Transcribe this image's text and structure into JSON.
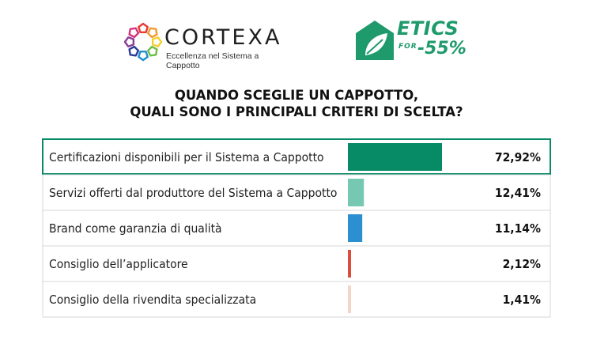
{
  "header": {
    "cortexa_name": "CORTEXA",
    "cortexa_tagline": "Eccellenza nel Sistema a Cappotto",
    "etics_word": "ETICS",
    "etics_for": "FOR",
    "etics_pct": "-55%",
    "cortexa_colors": [
      "#e53b35",
      "#f29a2e",
      "#f5cf2f",
      "#6bbf44",
      "#1f8ecf",
      "#2b3a97",
      "#8a3c96",
      "#d6307a"
    ],
    "etics_color": "#1e9a6c"
  },
  "title_lines": [
    "QUANDO SCEGLIE UN CAPPOTTO,",
    "QUALI SONO I PRINCIPALI CRITERI DI SCELTA?"
  ],
  "chart_data": {
    "type": "bar",
    "orientation": "horizontal",
    "title": "QUANDO SCEGLIE UN CAPPOTTO, QUALI SONO I PRINCIPALI CRITERI DI SCELTA?",
    "categories": [
      "Certificazioni disponibili per il Sistema a Cappotto",
      "Servizi offerti dal produttore del Sistema a Cappotto",
      "Brand come garanzia di qualità",
      "Consiglio dell’applicatore",
      "Consiglio della rivendita specializzata"
    ],
    "values": [
      72.92,
      12.41,
      11.14,
      2.12,
      1.41
    ],
    "value_labels": [
      "72,92%",
      "12,41%",
      "11,14%",
      "2,12%",
      "1,41%"
    ],
    "colors": [
      "#078a66",
      "#77c8b2",
      "#2c8fd0",
      "#db4e3c",
      "#f2d6c8"
    ],
    "highlight_color": "#078a66",
    "xlim": [
      0,
      100
    ],
    "xlabel": "",
    "ylabel": "",
    "grid": false,
    "legend": "none"
  }
}
